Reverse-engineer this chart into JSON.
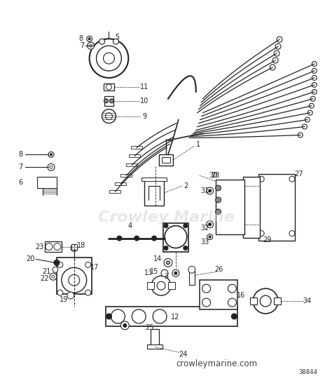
{
  "bg_color": "#ffffff",
  "line_color": "#222222",
  "watermark_color": "#d0d0d0",
  "watermark_text": "Crowley Marine",
  "website_text": "crowleymarine.com",
  "part_number": "38844",
  "fig_width": 4.74,
  "fig_height": 5.43,
  "dpi": 100
}
